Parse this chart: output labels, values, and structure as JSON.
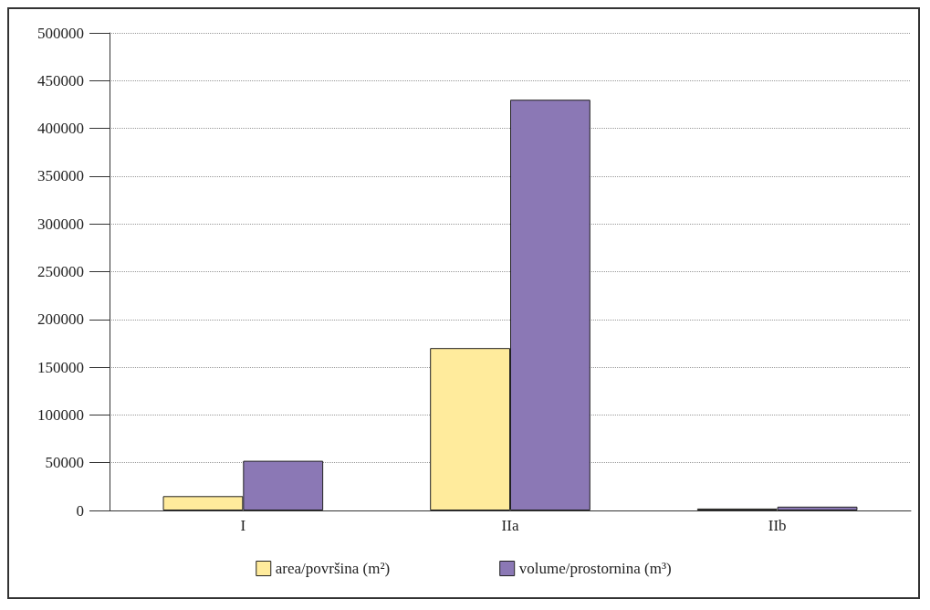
{
  "chart_data": {
    "type": "bar",
    "categories": [
      "I",
      "IIa",
      "IIb"
    ],
    "series": [
      {
        "name": "area/površina (m²)",
        "color": "#ffeb9c",
        "values": [
          15000,
          170000,
          2000
        ]
      },
      {
        "name": "volume/prostornina (m³)",
        "color": "#8b78b5",
        "values": [
          52000,
          430000,
          4000
        ]
      }
    ],
    "ylim": [
      0,
      500000
    ],
    "yticks": [
      0,
      50000,
      100000,
      150000,
      200000,
      250000,
      300000,
      350000,
      400000,
      450000,
      500000
    ],
    "grid": "y",
    "legend": "bottom"
  }
}
